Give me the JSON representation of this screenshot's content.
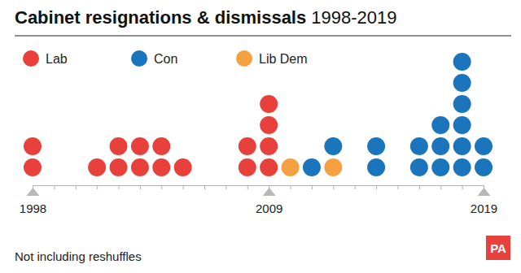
{
  "chart_data": {
    "type": "dot",
    "title": "Cabinet resignations & dismissals",
    "subtitle": "1998-2019",
    "annotations": [
      "Not including reshuffles",
      "PA"
    ],
    "categories": [
      "1998",
      null,
      null,
      null,
      null,
      null,
      null,
      null,
      null,
      null,
      null,
      "2009",
      null,
      null,
      null,
      null,
      null,
      null,
      null,
      null,
      null,
      "2019"
    ],
    "series": [
      {
        "name": "Lab",
        "color": "#e8413c",
        "values": [
          2,
          0,
          0,
          1,
          2,
          2,
          2,
          1,
          0,
          0,
          2,
          4,
          0,
          0,
          0,
          0,
          0,
          0,
          0,
          0,
          0,
          0
        ]
      },
      {
        "name": "Con",
        "color": "#1a75bc",
        "values": [
          0,
          0,
          0,
          0,
          0,
          0,
          0,
          0,
          0,
          0,
          0,
          0,
          0,
          1,
          1,
          0,
          2,
          0,
          2,
          3,
          6,
          2
        ]
      },
      {
        "name": "Lib Dem",
        "color": "#f5a142",
        "values": [
          0,
          0,
          0,
          0,
          0,
          0,
          0,
          0,
          0,
          0,
          0,
          0,
          1,
          0,
          1,
          0,
          0,
          0,
          0,
          0,
          0,
          0
        ]
      }
    ],
    "stacked": true,
    "tick_labels": "x"
  }
}
